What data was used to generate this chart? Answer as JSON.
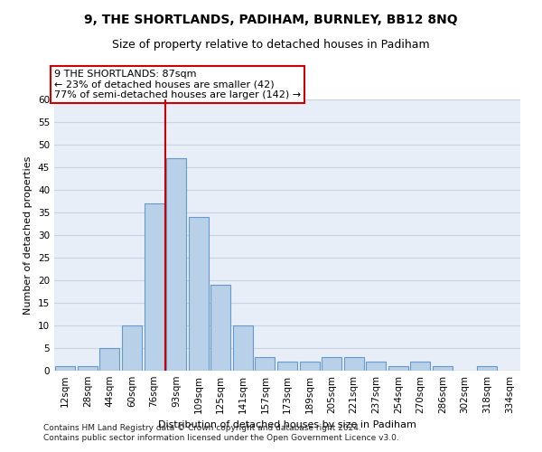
{
  "title1": "9, THE SHORTLANDS, PADIHAM, BURNLEY, BB12 8NQ",
  "title2": "Size of property relative to detached houses in Padiham",
  "xlabel": "Distribution of detached houses by size in Padiham",
  "ylabel": "Number of detached properties",
  "categories": [
    "12sqm",
    "28sqm",
    "44sqm",
    "60sqm",
    "76sqm",
    "93sqm",
    "109sqm",
    "125sqm",
    "141sqm",
    "157sqm",
    "173sqm",
    "189sqm",
    "205sqm",
    "221sqm",
    "237sqm",
    "254sqm",
    "270sqm",
    "286sqm",
    "302sqm",
    "318sqm",
    "334sqm"
  ],
  "values": [
    1,
    1,
    5,
    10,
    37,
    47,
    34,
    19,
    10,
    3,
    2,
    2,
    3,
    3,
    2,
    1,
    2,
    1,
    0,
    1,
    0
  ],
  "bar_color": "#b8d0e8",
  "bar_edge_color": "#6699cc",
  "vline_index": 5,
  "annotation_text_line1": "9 THE SHORTLANDS: 87sqm",
  "annotation_text_line2": "← 23% of detached houses are smaller (42)",
  "annotation_text_line3": "77% of semi-detached houses are larger (142) →",
  "annotation_box_color": "#ffffff",
  "annotation_box_edge_color": "#cc0000",
  "vline_color": "#cc0000",
  "ylim_min": 0,
  "ylim_max": 60,
  "yticks": [
    0,
    5,
    10,
    15,
    20,
    25,
    30,
    35,
    40,
    45,
    50,
    55,
    60
  ],
  "grid_color": "#c8d4e4",
  "background_color": "#e8eef8",
  "footnote1": "Contains HM Land Registry data © Crown copyright and database right 2024.",
  "footnote2": "Contains public sector information licensed under the Open Government Licence v3.0.",
  "title1_fontsize": 10,
  "title2_fontsize": 9,
  "axis_label_fontsize": 8,
  "tick_fontsize": 7.5,
  "annot_fontsize": 8,
  "footnote_fontsize": 6.5
}
